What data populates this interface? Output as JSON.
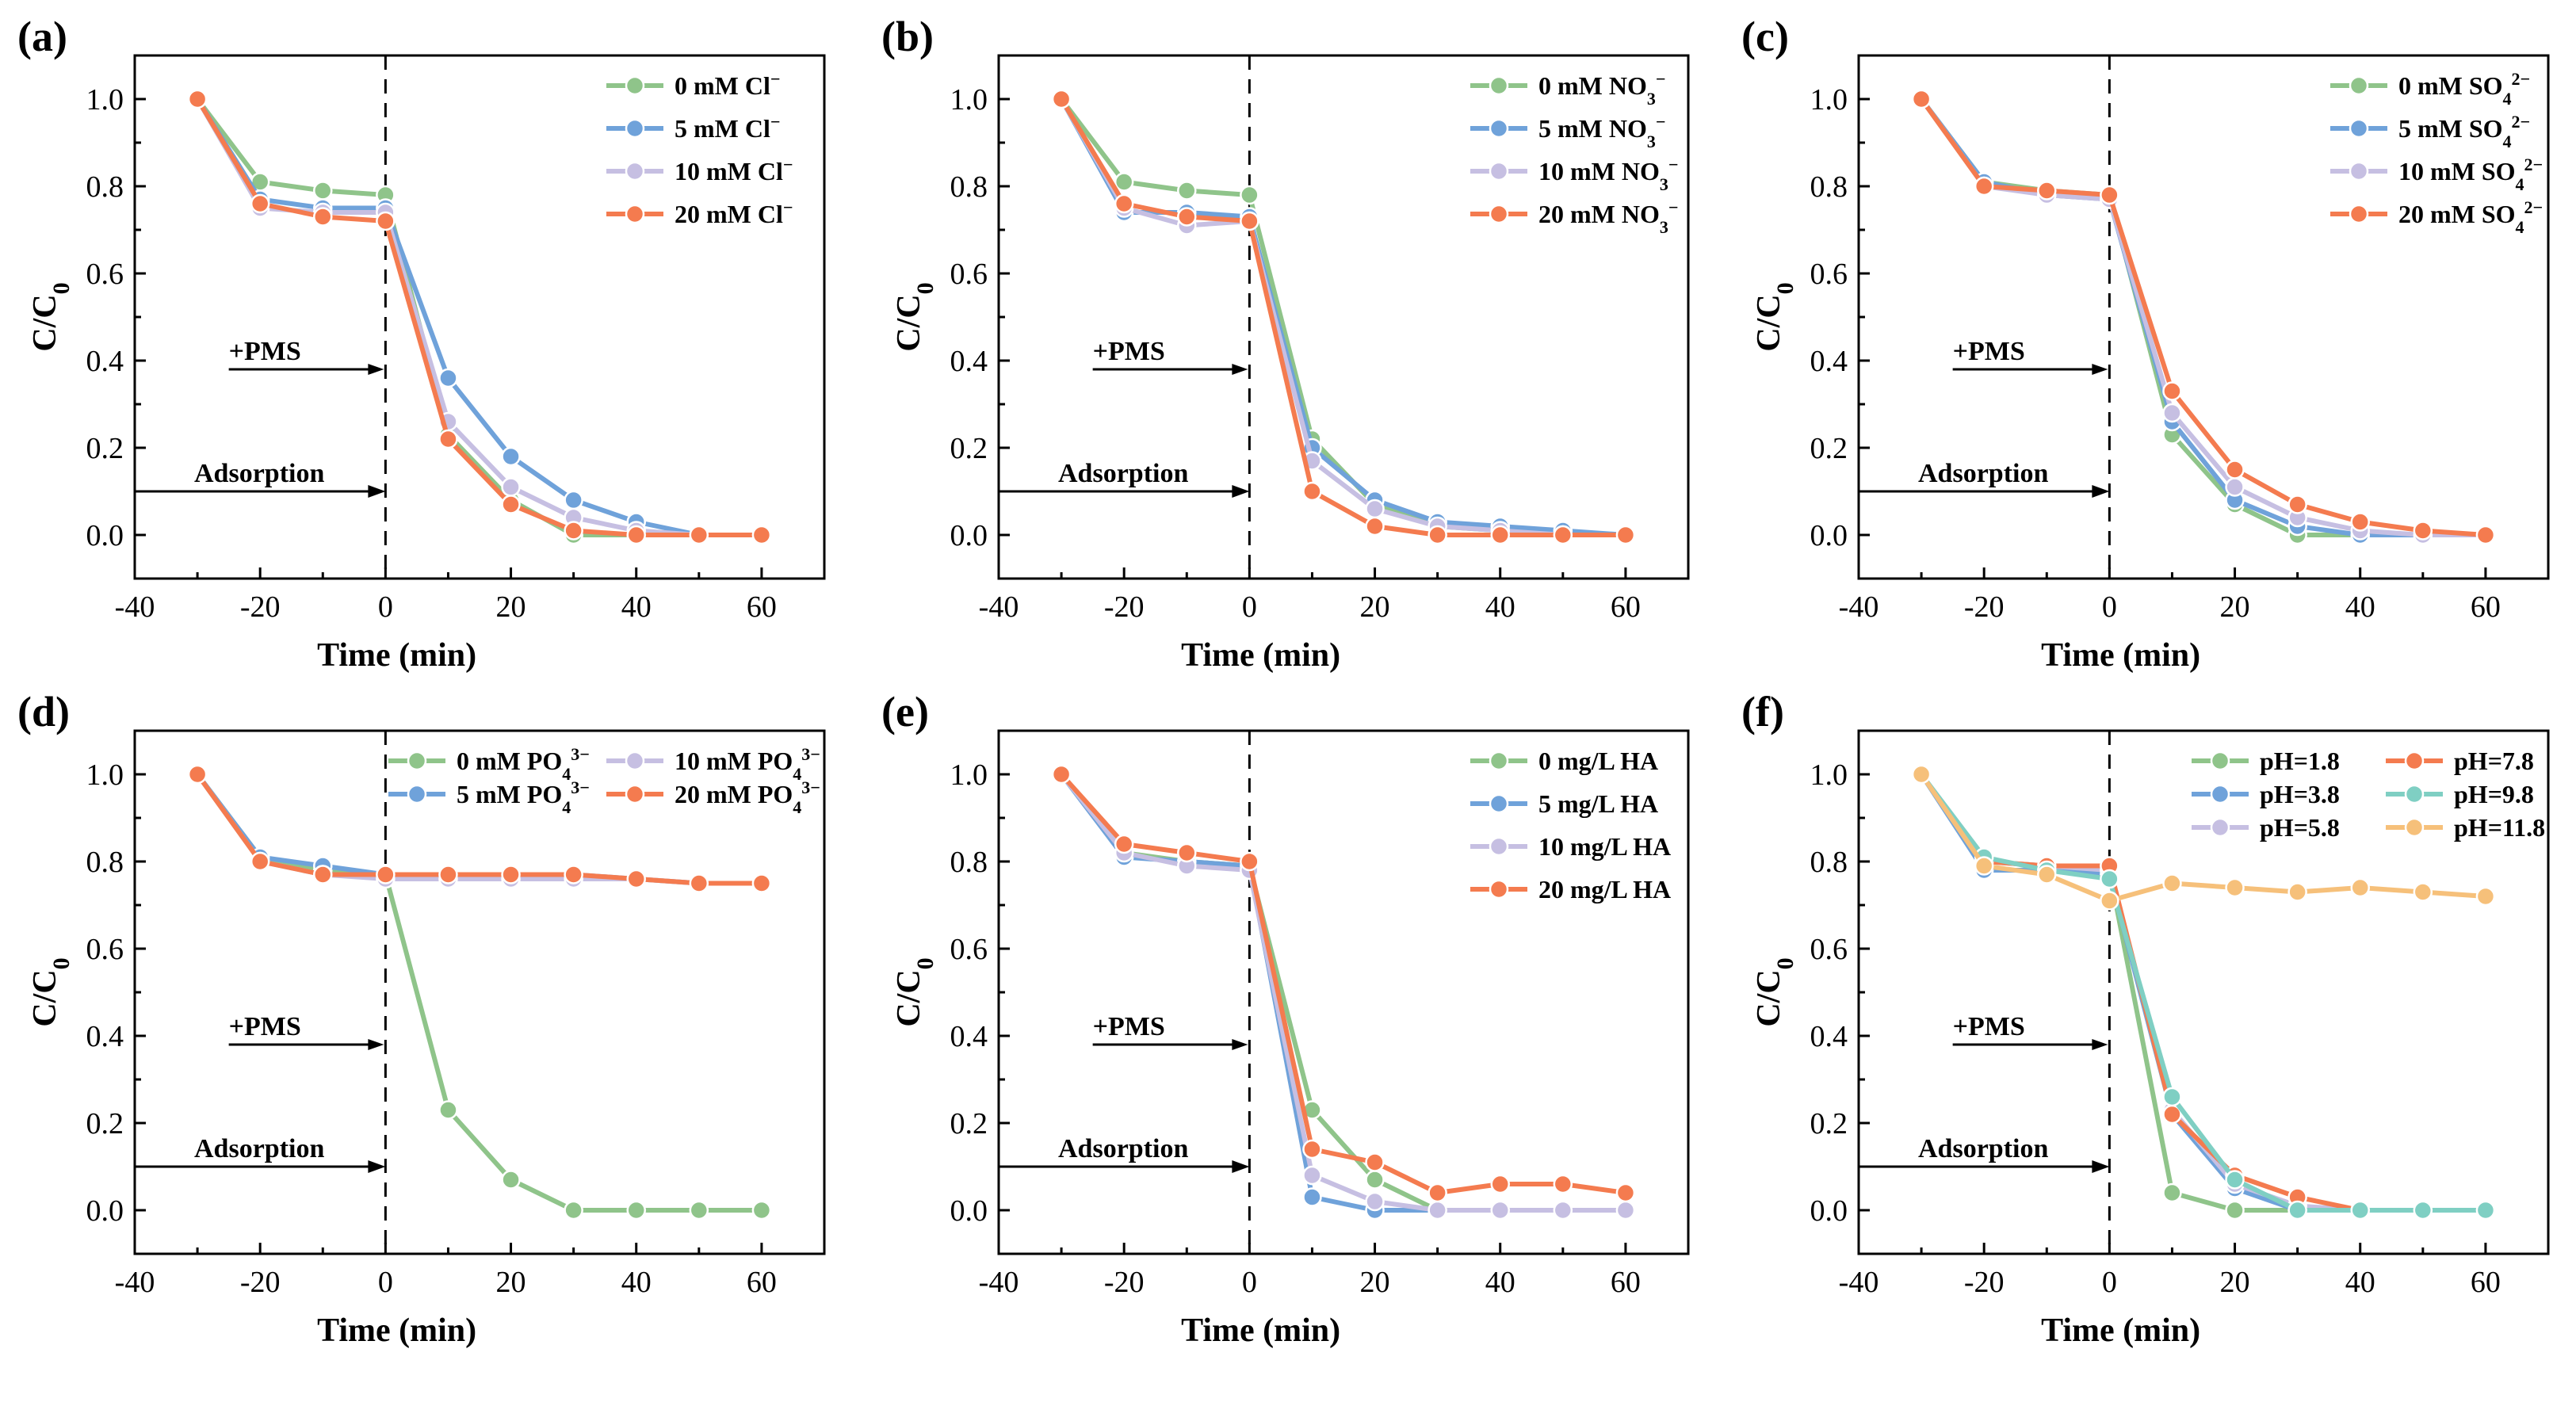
{
  "chart_data": [
    {
      "type": "line",
      "panel_label": "(a)",
      "xlabel": "Time (min)",
      "ylabel": "C/C0",
      "xlim": [
        -40,
        70
      ],
      "ylim": [
        -0.1,
        1.1
      ],
      "xticks": [
        "-40",
        "-20",
        "0",
        "20",
        "40",
        "60"
      ],
      "yticks": [
        "0.0",
        "0.2",
        "0.4",
        "0.6",
        "0.8",
        "1.0"
      ],
      "x": [
        -30,
        -20,
        -10,
        0,
        10,
        20,
        30,
        40,
        50,
        60
      ],
      "legend_position": "top-right",
      "annotations": {
        "pms": "+PMS",
        "adsorption": "Adsorption"
      },
      "series": [
        {
          "name": "0 mM Cl⁻",
          "color": "#8fc48a",
          "values": [
            1.0,
            0.81,
            0.79,
            0.78,
            0.23,
            0.08,
            0.0,
            0.0,
            0.0,
            0.0
          ]
        },
        {
          "name": "5 mM Cl⁻",
          "color": "#6fa2da",
          "values": [
            1.0,
            0.77,
            0.75,
            0.75,
            0.36,
            0.18,
            0.08,
            0.03,
            0.0,
            0.0
          ]
        },
        {
          "name": "10 mM Cl⁻",
          "color": "#c6bfe2",
          "values": [
            1.0,
            0.75,
            0.74,
            0.74,
            0.26,
            0.11,
            0.04,
            0.01,
            0.0,
            0.0
          ]
        },
        {
          "name": "20 mM Cl⁻",
          "color": "#f47b4f",
          "values": [
            1.0,
            0.76,
            0.73,
            0.72,
            0.22,
            0.07,
            0.01,
            0.0,
            0.0,
            0.0
          ]
        }
      ]
    },
    {
      "type": "line",
      "panel_label": "(b)",
      "xlabel": "Time (min)",
      "ylabel": "C/C0",
      "xlim": [
        -40,
        70
      ],
      "ylim": [
        -0.1,
        1.1
      ],
      "xticks": [
        "-40",
        "-20",
        "0",
        "20",
        "40",
        "60"
      ],
      "yticks": [
        "0.0",
        "0.2",
        "0.4",
        "0.6",
        "0.8",
        "1.0"
      ],
      "x": [
        -30,
        -20,
        -10,
        0,
        10,
        20,
        30,
        40,
        50,
        60
      ],
      "legend_position": "top-right",
      "annotations": {
        "pms": "+PMS",
        "adsorption": "Adsorption"
      },
      "series": [
        {
          "name": "0 mM NO₃⁻",
          "color": "#8fc48a",
          "values": [
            1.0,
            0.81,
            0.79,
            0.78,
            0.22,
            0.07,
            0.02,
            0.01,
            0.0,
            0.0
          ]
        },
        {
          "name": "5 mM NO₃⁻",
          "color": "#6fa2da",
          "values": [
            1.0,
            0.74,
            0.74,
            0.73,
            0.2,
            0.08,
            0.03,
            0.02,
            0.01,
            0.0
          ]
        },
        {
          "name": "10 mM NO₃⁻",
          "color": "#c6bfe2",
          "values": [
            1.0,
            0.75,
            0.71,
            0.72,
            0.17,
            0.06,
            0.02,
            0.01,
            0.0,
            0.0
          ]
        },
        {
          "name": "20 mM NO₃⁻",
          "color": "#f47b4f",
          "values": [
            1.0,
            0.76,
            0.73,
            0.72,
            0.1,
            0.02,
            0.0,
            0.0,
            0.0,
            0.0
          ]
        }
      ]
    },
    {
      "type": "line",
      "panel_label": "(c)",
      "xlabel": "Time (min)",
      "ylabel": "C/C0",
      "xlim": [
        -40,
        70
      ],
      "ylim": [
        -0.1,
        1.1
      ],
      "xticks": [
        "-40",
        "-20",
        "0",
        "20",
        "40",
        "60"
      ],
      "yticks": [
        "0.0",
        "0.2",
        "0.4",
        "0.6",
        "0.8",
        "1.0"
      ],
      "x": [
        -30,
        -20,
        -10,
        0,
        10,
        20,
        30,
        40,
        50,
        60
      ],
      "legend_position": "top-right",
      "annotations": {
        "pms": "+PMS",
        "adsorption": "Adsorption"
      },
      "series": [
        {
          "name": "0 mM SO₄²⁻",
          "color": "#8fc48a",
          "values": [
            1.0,
            0.81,
            0.79,
            0.78,
            0.23,
            0.07,
            0.0,
            0.0,
            0.0,
            0.0
          ]
        },
        {
          "name": "5 mM SO₄²⁻",
          "color": "#6fa2da",
          "values": [
            1.0,
            0.81,
            0.78,
            0.77,
            0.26,
            0.08,
            0.02,
            0.0,
            0.0,
            0.0
          ]
        },
        {
          "name": "10 mM SO₄²⁻",
          "color": "#c6bfe2",
          "values": [
            1.0,
            0.8,
            0.78,
            0.77,
            0.28,
            0.11,
            0.04,
            0.01,
            0.0,
            0.0
          ]
        },
        {
          "name": "20 mM SO₄²⁻",
          "color": "#f47b4f",
          "values": [
            1.0,
            0.8,
            0.79,
            0.78,
            0.33,
            0.15,
            0.07,
            0.03,
            0.01,
            0.0
          ]
        }
      ]
    },
    {
      "type": "line",
      "panel_label": "(d)",
      "xlabel": "Time (min)",
      "ylabel": "C/C0",
      "xlim": [
        -40,
        70
      ],
      "ylim": [
        -0.1,
        1.1
      ],
      "xticks": [
        "-40",
        "-20",
        "0",
        "20",
        "40",
        "60"
      ],
      "yticks": [
        "0.0",
        "0.2",
        "0.4",
        "0.6",
        "0.8",
        "1.0"
      ],
      "x": [
        -30,
        -20,
        -10,
        0,
        10,
        20,
        30,
        40,
        50,
        60
      ],
      "legend_position": "top-right",
      "legend_columns": 2,
      "annotations": {
        "pms": "+PMS",
        "adsorption": "Adsorption"
      },
      "series": [
        {
          "name": "0 mM PO₄³⁻",
          "color": "#8fc48a",
          "values": [
            1.0,
            0.81,
            0.78,
            0.77,
            0.23,
            0.07,
            0.0,
            0.0,
            0.0,
            0.0
          ]
        },
        {
          "name": "5 mM PO₄³⁻",
          "color": "#6fa2da",
          "values": [
            1.0,
            0.81,
            0.79,
            0.77,
            0.77,
            0.77,
            0.77,
            0.76,
            0.75,
            0.75
          ]
        },
        {
          "name": "10 mM PO₄³⁻",
          "color": "#c6bfe2",
          "values": [
            1.0,
            0.8,
            0.77,
            0.76,
            0.76,
            0.76,
            0.76,
            0.76,
            0.75,
            0.75
          ]
        },
        {
          "name": "20 mM PO₄³⁻",
          "color": "#f47b4f",
          "values": [
            1.0,
            0.8,
            0.77,
            0.77,
            0.77,
            0.77,
            0.77,
            0.76,
            0.75,
            0.75
          ]
        }
      ]
    },
    {
      "type": "line",
      "panel_label": "(e)",
      "xlabel": "Time (min)",
      "ylabel": "C/C0",
      "xlim": [
        -40,
        70
      ],
      "ylim": [
        -0.1,
        1.1
      ],
      "xticks": [
        "-40",
        "-20",
        "0",
        "20",
        "40",
        "60"
      ],
      "yticks": [
        "0.0",
        "0.2",
        "0.4",
        "0.6",
        "0.8",
        "1.0"
      ],
      "x": [
        -30,
        -20,
        -10,
        0,
        10,
        20,
        30,
        40,
        50,
        60
      ],
      "legend_position": "top-right",
      "annotations": {
        "pms": "+PMS",
        "adsorption": "Adsorption"
      },
      "series": [
        {
          "name": "0 mg/L HA",
          "color": "#8fc48a",
          "values": [
            1.0,
            0.82,
            0.8,
            0.79,
            0.23,
            0.07,
            0.0,
            0.0,
            0.0,
            0.0
          ]
        },
        {
          "name": "5 mg/L HA",
          "color": "#6fa2da",
          "values": [
            1.0,
            0.81,
            0.8,
            0.79,
            0.03,
            0.0,
            0.0,
            0.0,
            0.0,
            0.0
          ]
        },
        {
          "name": "10 mg/L HA",
          "color": "#c6bfe2",
          "values": [
            1.0,
            0.82,
            0.79,
            0.78,
            0.08,
            0.02,
            0.0,
            0.0,
            0.0,
            0.0
          ]
        },
        {
          "name": "20 mg/L HA",
          "color": "#f47b4f",
          "values": [
            1.0,
            0.84,
            0.82,
            0.8,
            0.14,
            0.11,
            0.04,
            0.06,
            0.06,
            0.04
          ]
        }
      ]
    },
    {
      "type": "line",
      "panel_label": "(f)",
      "xlabel": "Time (min)",
      "ylabel": "C/C0",
      "xlim": [
        -40,
        70
      ],
      "ylim": [
        -0.1,
        1.1
      ],
      "xticks": [
        "-40",
        "-20",
        "0",
        "20",
        "40",
        "60"
      ],
      "yticks": [
        "0.0",
        "0.2",
        "0.4",
        "0.6",
        "0.8",
        "1.0"
      ],
      "x": [
        -30,
        -20,
        -10,
        0,
        10,
        20,
        30,
        40,
        50,
        60
      ],
      "legend_position": "top-right",
      "legend_columns": 2,
      "annotations": {
        "pms": "+PMS",
        "adsorption": "Adsorption"
      },
      "series": [
        {
          "name": "pH=1.8",
          "color": "#8fc48a",
          "values": [
            1.0,
            0.8,
            0.79,
            0.78,
            0.04,
            0.0,
            0.0,
            0.0,
            0.0,
            0.0
          ]
        },
        {
          "name": "pH=3.8",
          "color": "#6fa2da",
          "values": [
            1.0,
            0.78,
            0.78,
            0.77,
            0.22,
            0.05,
            0.0,
            0.0,
            0.0,
            0.0
          ]
        },
        {
          "name": "pH=5.8",
          "color": "#c6bfe2",
          "values": [
            1.0,
            0.8,
            0.79,
            0.78,
            0.23,
            0.06,
            0.01,
            0.0,
            0.0,
            0.0
          ]
        },
        {
          "name": "pH=7.8",
          "color": "#f47b4f",
          "values": [
            1.0,
            0.8,
            0.79,
            0.79,
            0.22,
            0.08,
            0.03,
            0.0,
            0.0,
            0.0
          ]
        },
        {
          "name": "pH=9.8",
          "color": "#7fcfc3",
          "values": [
            1.0,
            0.81,
            0.78,
            0.76,
            0.26,
            0.07,
            0.0,
            0.0,
            0.0,
            0.0
          ]
        },
        {
          "name": "pH=11.8",
          "color": "#f6c07a",
          "values": [
            1.0,
            0.79,
            0.77,
            0.71,
            0.75,
            0.74,
            0.73,
            0.74,
            0.73,
            0.72
          ]
        }
      ]
    }
  ]
}
